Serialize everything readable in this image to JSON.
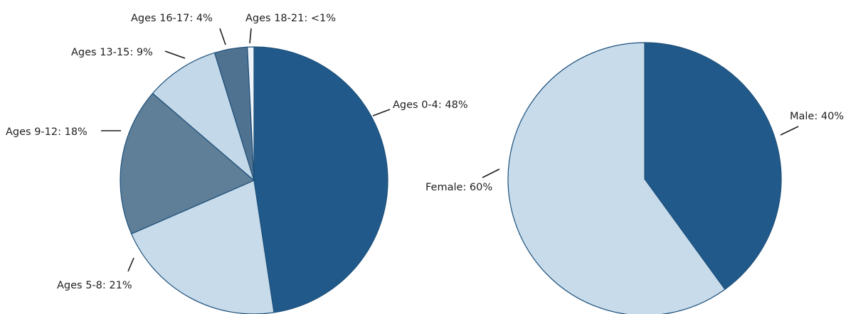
{
  "chart_data": [
    {
      "type": "pie",
      "slices": [
        {
          "label": "Ages 0-4: 48%",
          "value": 48,
          "color": "#215a8a"
        },
        {
          "label": "Ages 5-8: 21%",
          "value": 21,
          "color": "#c7dbea"
        },
        {
          "label": "Ages 9-12: 18%",
          "value": 18,
          "color": "#5f7f98"
        },
        {
          "label": "Ages 13-15: 9%",
          "value": 9,
          "color": "#c3d8e8"
        },
        {
          "label": "Ages 16-17: 4%",
          "value": 4,
          "color": "#4f7290"
        },
        {
          "label": "Ages 18-21: <1%",
          "value": 0.8,
          "color": "#eef4f9"
        }
      ]
    },
    {
      "type": "pie",
      "slices": [
        {
          "label": "Male: 40%",
          "value": 40,
          "color": "#215a8a"
        },
        {
          "label": "Female: 60%",
          "value": 60,
          "color": "#c7dbea"
        }
      ]
    }
  ]
}
